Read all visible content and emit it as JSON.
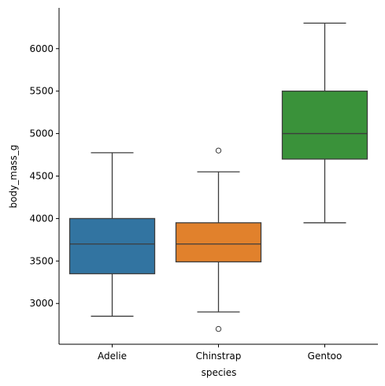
{
  "chart_data": {
    "type": "box",
    "title": "",
    "xlabel": "species",
    "ylabel": "body_mass_g",
    "ylim": [
      2520,
      6480
    ],
    "yticks": [
      3000,
      3500,
      4000,
      4500,
      5000,
      5500,
      6000
    ],
    "ytick_labels": [
      "3000",
      "3500",
      "4000",
      "4500",
      "5000",
      "5500",
      "6000"
    ],
    "grid": false,
    "categories": [
      "Adelie",
      "Chinstrap",
      "Gentoo"
    ],
    "boxes": [
      {
        "category": "Adelie",
        "color": "#3274a1",
        "whislo": 2850,
        "q1": 3350,
        "median": 3700,
        "q3": 4000,
        "whishi": 4775,
        "fliers": []
      },
      {
        "category": "Chinstrap",
        "color": "#e1812c",
        "whislo": 2900,
        "q1": 3490,
        "median": 3700,
        "q3": 3950,
        "whishi": 4550,
        "fliers": [
          2700,
          4800
        ]
      },
      {
        "category": "Gentoo",
        "color": "#3a923a",
        "whislo": 3950,
        "q1": 4700,
        "median": 5000,
        "q3": 5500,
        "whishi": 6300,
        "fliers": []
      }
    ]
  }
}
